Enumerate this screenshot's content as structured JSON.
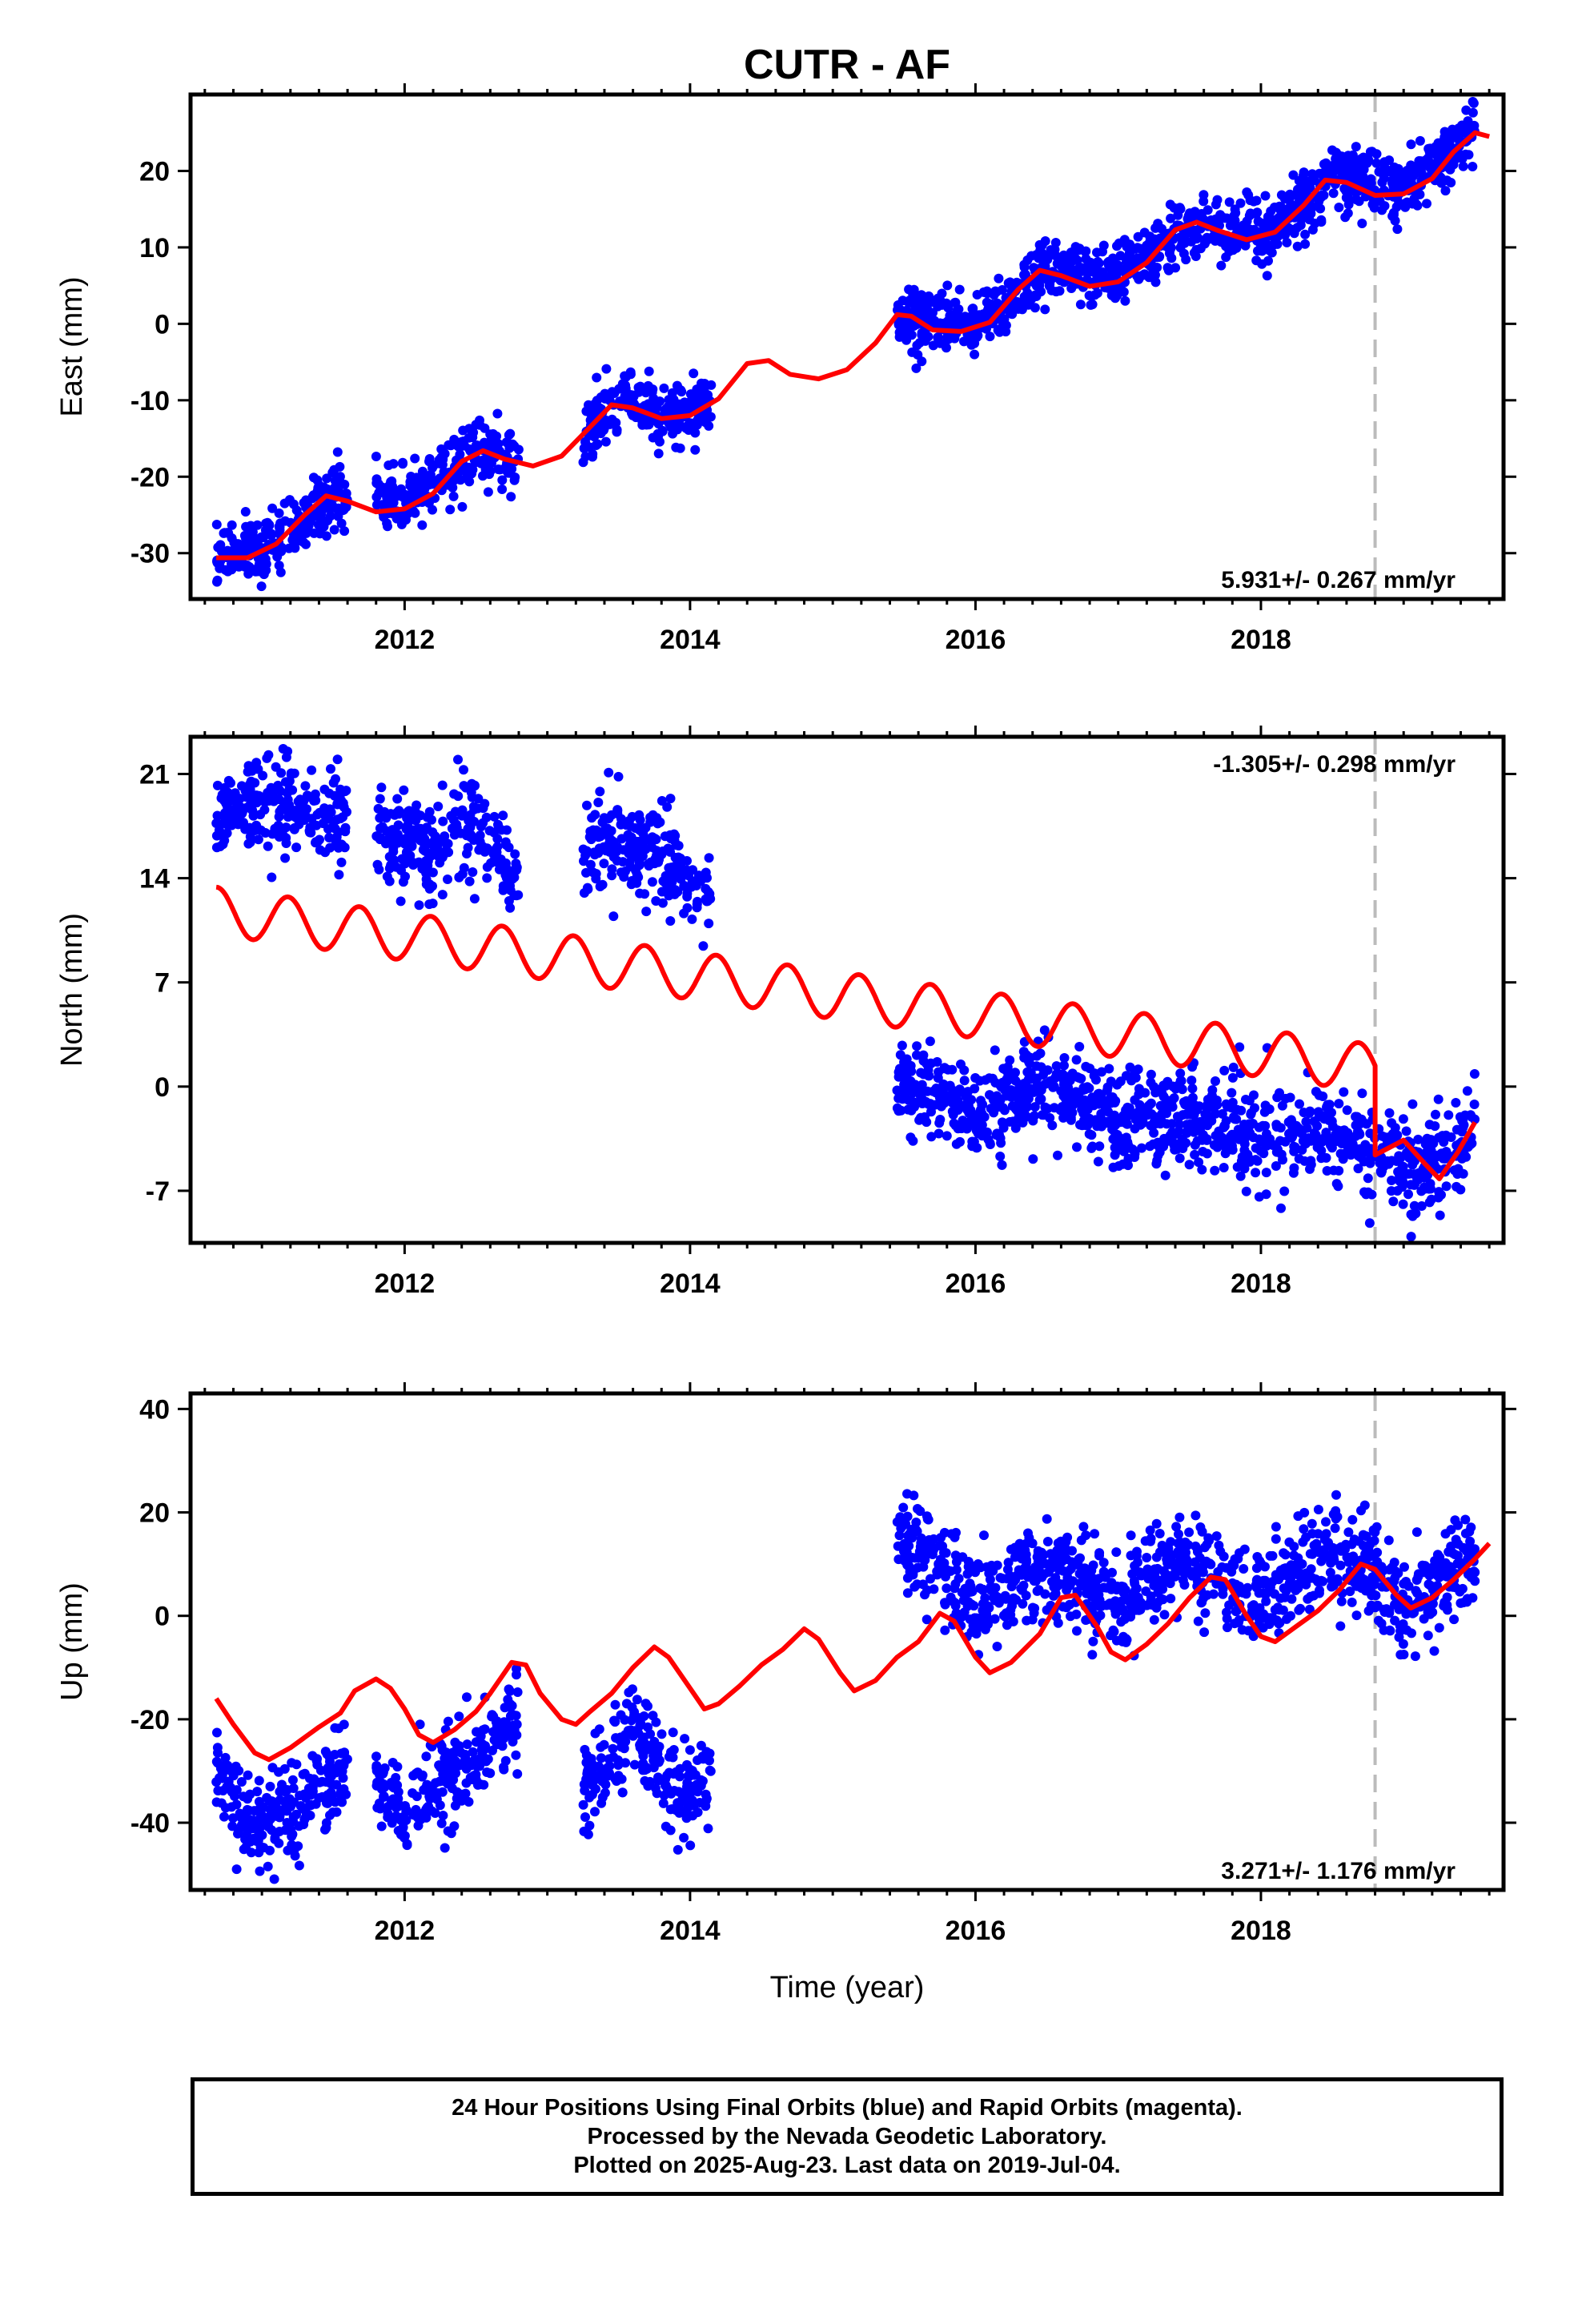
{
  "title": "CUTR - AF",
  "footer": {
    "line1": "24 Hour Positions Using Final Orbits (blue) and Rapid Orbits (magenta).",
    "line2": "Processed by the Nevada Geodetic Laboratory.",
    "line3": "Plotted on 2025-Aug-23. Last data on 2019-Jul-04."
  },
  "chart_data": [
    {
      "type": "scatter",
      "ylabel": "East (mm)",
      "rate_label": "5.931+/- 0.267 mm/yr",
      "xlim": [
        2010.5,
        2019.7
      ],
      "ylim": [
        -36,
        30
      ],
      "x_ticks": [
        2012,
        2014,
        2016,
        2018
      ],
      "y_ticks": [
        -30,
        -20,
        -10,
        0,
        10,
        20
      ],
      "equipment_change": 2018.8,
      "data_segments": [
        [
          2010.68,
          2011.6
        ],
        [
          2011.8,
          2012.8
        ],
        [
          2013.25,
          2014.15
        ],
        [
          2015.45,
          2019.5
        ]
      ],
      "series": [
        {
          "kind": "observations",
          "color": "#0000ff",
          "trend": [
            [
              2010.7,
              -30.5
            ],
            [
              2011.0,
              -29.5
            ],
            [
              2011.5,
              -22.5
            ],
            [
              2012.0,
              -23.0
            ],
            [
              2012.5,
              -17.0
            ],
            [
              2013.0,
              -18.0
            ],
            [
              2013.5,
              -11.0
            ],
            [
              2014.0,
              -11.5
            ],
            [
              2015.5,
              1.0
            ],
            [
              2016.0,
              0.0
            ],
            [
              2016.5,
              7.0
            ],
            [
              2017.0,
              6.0
            ],
            [
              2017.5,
              13.0
            ],
            [
              2018.0,
              11.5
            ],
            [
              2018.5,
              19.0
            ],
            [
              2019.0,
              17.5
            ],
            [
              2019.5,
              25.0
            ]
          ],
          "scatter": 2.0
        },
        {
          "kind": "model",
          "color": "#ff0000",
          "points": [
            [
              2010.68,
              -30.6
            ],
            [
              2010.9,
              -30.6
            ],
            [
              2011.1,
              -28.8
            ],
            [
              2011.3,
              -25.0
            ],
            [
              2011.45,
              -22.5
            ],
            [
              2011.6,
              -23.2
            ],
            [
              2011.8,
              -24.6
            ],
            [
              2012.0,
              -24.2
            ],
            [
              2012.2,
              -22.2
            ],
            [
              2012.4,
              -18.0
            ],
            [
              2012.55,
              -16.6
            ],
            [
              2012.7,
              -17.7
            ],
            [
              2012.9,
              -18.6
            ],
            [
              2013.1,
              -17.3
            ],
            [
              2013.3,
              -13.5
            ],
            [
              2013.45,
              -10.6
            ],
            [
              2013.6,
              -11.0
            ],
            [
              2013.8,
              -12.4
            ],
            [
              2014.0,
              -12.0
            ],
            [
              2014.2,
              -9.8
            ],
            [
              2014.4,
              -5.2
            ],
            [
              2014.55,
              -4.8
            ],
            [
              2014.7,
              -6.6
            ],
            [
              2014.9,
              -7.2
            ],
            [
              2015.1,
              -6.0
            ],
            [
              2015.3,
              -2.5
            ],
            [
              2015.45,
              1.2
            ],
            [
              2015.55,
              1.0
            ],
            [
              2015.7,
              -0.8
            ],
            [
              2015.9,
              -1.0
            ],
            [
              2016.1,
              0.2
            ],
            [
              2016.3,
              4.5
            ],
            [
              2016.45,
              7.0
            ],
            [
              2016.6,
              6.3
            ],
            [
              2016.8,
              4.9
            ],
            [
              2017.0,
              5.5
            ],
            [
              2017.2,
              8.0
            ],
            [
              2017.4,
              12.3
            ],
            [
              2017.55,
              13.3
            ],
            [
              2017.7,
              12.2
            ],
            [
              2017.9,
              11.0
            ],
            [
              2018.1,
              12.0
            ],
            [
              2018.3,
              15.5
            ],
            [
              2018.45,
              18.8
            ],
            [
              2018.6,
              18.5
            ],
            [
              2018.8,
              16.8
            ],
            [
              2019.0,
              17.0
            ],
            [
              2019.2,
              19.0
            ],
            [
              2019.35,
              22.5
            ],
            [
              2019.5,
              25.0
            ],
            [
              2019.6,
              24.5
            ]
          ]
        }
      ]
    },
    {
      "type": "scatter",
      "ylabel": "North (mm)",
      "rate_label": "-1.305+/- 0.298 mm/yr",
      "xlim": [
        2010.5,
        2019.7
      ],
      "ylim": [
        -10.5,
        23.5
      ],
      "x_ticks": [
        2012,
        2014,
        2016,
        2018
      ],
      "y_ticks": [
        -7,
        0,
        7,
        14,
        21
      ],
      "equipment_change": 2018.8,
      "data_segments": [
        [
          2010.68,
          2011.6
        ],
        [
          2011.8,
          2012.8
        ],
        [
          2013.25,
          2014.15
        ],
        [
          2015.45,
          2019.5
        ]
      ],
      "series": [
        {
          "kind": "observations",
          "color": "#0000ff",
          "trend": [
            [
              2010.7,
              18.0
            ],
            [
              2011.0,
              19.0
            ],
            [
              2011.5,
              18.0
            ],
            [
              2011.8,
              17.5
            ],
            [
              2012.2,
              15.5
            ],
            [
              2012.5,
              18.0
            ],
            [
              2012.8,
              13.0
            ],
            [
              2013.25,
              16.0
            ],
            [
              2013.5,
              17.0
            ],
            [
              2014.0,
              14.0
            ],
            [
              2014.15,
              13.5
            ],
            [
              2015.45,
              0.5
            ],
            [
              2016.0,
              -2.0
            ],
            [
              2016.5,
              0.0
            ],
            [
              2017.0,
              -2.5
            ],
            [
              2017.5,
              -2.0
            ],
            [
              2018.0,
              -3.5
            ],
            [
              2018.5,
              -3.0
            ],
            [
              2018.8,
              -4.5
            ],
            [
              2019.2,
              -5.5
            ],
            [
              2019.5,
              -2.5
            ]
          ],
          "scatter": 1.6
        },
        {
          "kind": "model",
          "color": "#ff0000",
          "sine": {
            "start": 2010.68,
            "end": 2018.8,
            "y0": 11.8,
            "slope": -1.305,
            "amp": 1.6,
            "period": 0.5
          },
          "after": [
            [
              2018.8,
              -4.6
            ],
            [
              2019.0,
              -3.6
            ],
            [
              2019.15,
              -5.2
            ],
            [
              2019.25,
              -6.2
            ],
            [
              2019.38,
              -4.4
            ],
            [
              2019.5,
              -2.4
            ]
          ]
        }
      ]
    },
    {
      "type": "scatter",
      "ylabel": "Up (mm)",
      "xlabel": "Time (year)",
      "rate_label": "3.271+/- 1.176 mm/yr",
      "xlim": [
        2010.5,
        2019.7
      ],
      "ylim": [
        -53,
        43
      ],
      "x_ticks": [
        2012,
        2014,
        2016,
        2018
      ],
      "y_ticks": [
        -40,
        -20,
        0,
        20,
        40
      ],
      "equipment_change": 2018.8,
      "data_segments": [
        [
          2010.68,
          2011.6
        ],
        [
          2011.8,
          2012.8
        ],
        [
          2013.25,
          2014.15
        ],
        [
          2015.45,
          2019.5
        ]
      ],
      "series": [
        {
          "kind": "observations",
          "color": "#0000ff",
          "trend": [
            [
              2010.7,
              -30.0
            ],
            [
              2011.0,
              -42.0
            ],
            [
              2011.3,
              -36.0
            ],
            [
              2011.6,
              -28.0
            ],
            [
              2011.8,
              -30.0
            ],
            [
              2012.0,
              -38.0
            ],
            [
              2012.4,
              -30.0
            ],
            [
              2012.8,
              -20.0
            ],
            [
              2013.25,
              -35.0
            ],
            [
              2013.6,
              -22.0
            ],
            [
              2013.9,
              -35.0
            ],
            [
              2014.15,
              -32.0
            ],
            [
              2015.45,
              15.0
            ],
            [
              2015.8,
              8.0
            ],
            [
              2016.0,
              2.0
            ],
            [
              2016.5,
              10.0
            ],
            [
              2016.8,
              5.0
            ],
            [
              2017.0,
              2.0
            ],
            [
              2017.5,
              12.0
            ],
            [
              2017.8,
              4.0
            ],
            [
              2018.0,
              4.0
            ],
            [
              2018.5,
              12.0
            ],
            [
              2018.8,
              8.0
            ],
            [
              2019.0,
              2.0
            ],
            [
              2019.5,
              12.0
            ]
          ],
          "scatter": 4.5
        },
        {
          "kind": "model",
          "color": "#ff0000",
          "points": [
            [
              2010.68,
              -16.0
            ],
            [
              2010.8,
              -21.0
            ],
            [
              2010.95,
              -26.5
            ],
            [
              2011.05,
              -27.8
            ],
            [
              2011.2,
              -25.5
            ],
            [
              2011.4,
              -21.5
            ],
            [
              2011.55,
              -18.8
            ],
            [
              2011.65,
              -14.5
            ],
            [
              2011.8,
              -12.2
            ],
            [
              2011.9,
              -14.0
            ],
            [
              2012.0,
              -18.0
            ],
            [
              2012.1,
              -23.0
            ],
            [
              2012.2,
              -24.5
            ],
            [
              2012.35,
              -22.0
            ],
            [
              2012.5,
              -18.5
            ],
            [
              2012.6,
              -15.0
            ],
            [
              2012.75,
              -9.0
            ],
            [
              2012.85,
              -9.5
            ],
            [
              2012.95,
              -15.0
            ],
            [
              2013.1,
              -20.0
            ],
            [
              2013.2,
              -21.0
            ],
            [
              2013.3,
              -18.5
            ],
            [
              2013.45,
              -15.0
            ],
            [
              2013.6,
              -10.0
            ],
            [
              2013.75,
              -6.0
            ],
            [
              2013.85,
              -8.0
            ],
            [
              2014.0,
              -14.0
            ],
            [
              2014.1,
              -18.0
            ],
            [
              2014.2,
              -17.0
            ],
            [
              2014.35,
              -13.5
            ],
            [
              2014.5,
              -9.5
            ],
            [
              2014.65,
              -6.5
            ],
            [
              2014.8,
              -2.5
            ],
            [
              2014.9,
              -4.5
            ],
            [
              2015.05,
              -11.0
            ],
            [
              2015.15,
              -14.5
            ],
            [
              2015.3,
              -12.5
            ],
            [
              2015.45,
              -8.0
            ],
            [
              2015.6,
              -5.0
            ],
            [
              2015.75,
              0.5
            ],
            [
              2015.85,
              -1.0
            ],
            [
              2016.0,
              -8.0
            ],
            [
              2016.1,
              -11.0
            ],
            [
              2016.25,
              -9.0
            ],
            [
              2016.45,
              -3.5
            ],
            [
              2016.6,
              3.5
            ],
            [
              2016.7,
              4.0
            ],
            [
              2016.85,
              -2.0
            ],
            [
              2016.95,
              -7.0
            ],
            [
              2017.05,
              -8.5
            ],
            [
              2017.2,
              -5.5
            ],
            [
              2017.35,
              -1.5
            ],
            [
              2017.5,
              3.5
            ],
            [
              2017.65,
              7.5
            ],
            [
              2017.75,
              7.0
            ],
            [
              2017.9,
              0.0
            ],
            [
              2018.0,
              -4.0
            ],
            [
              2018.1,
              -5.0
            ],
            [
              2018.25,
              -2.0
            ],
            [
              2018.4,
              1.0
            ],
            [
              2018.55,
              5.0
            ],
            [
              2018.7,
              10.0
            ],
            [
              2018.8,
              9.0
            ],
            [
              2018.95,
              4.0
            ],
            [
              2019.05,
              1.5
            ],
            [
              2019.2,
              3.5
            ],
            [
              2019.35,
              7.0
            ],
            [
              2019.5,
              11.0
            ],
            [
              2019.6,
              14.0
            ]
          ]
        }
      ]
    }
  ]
}
